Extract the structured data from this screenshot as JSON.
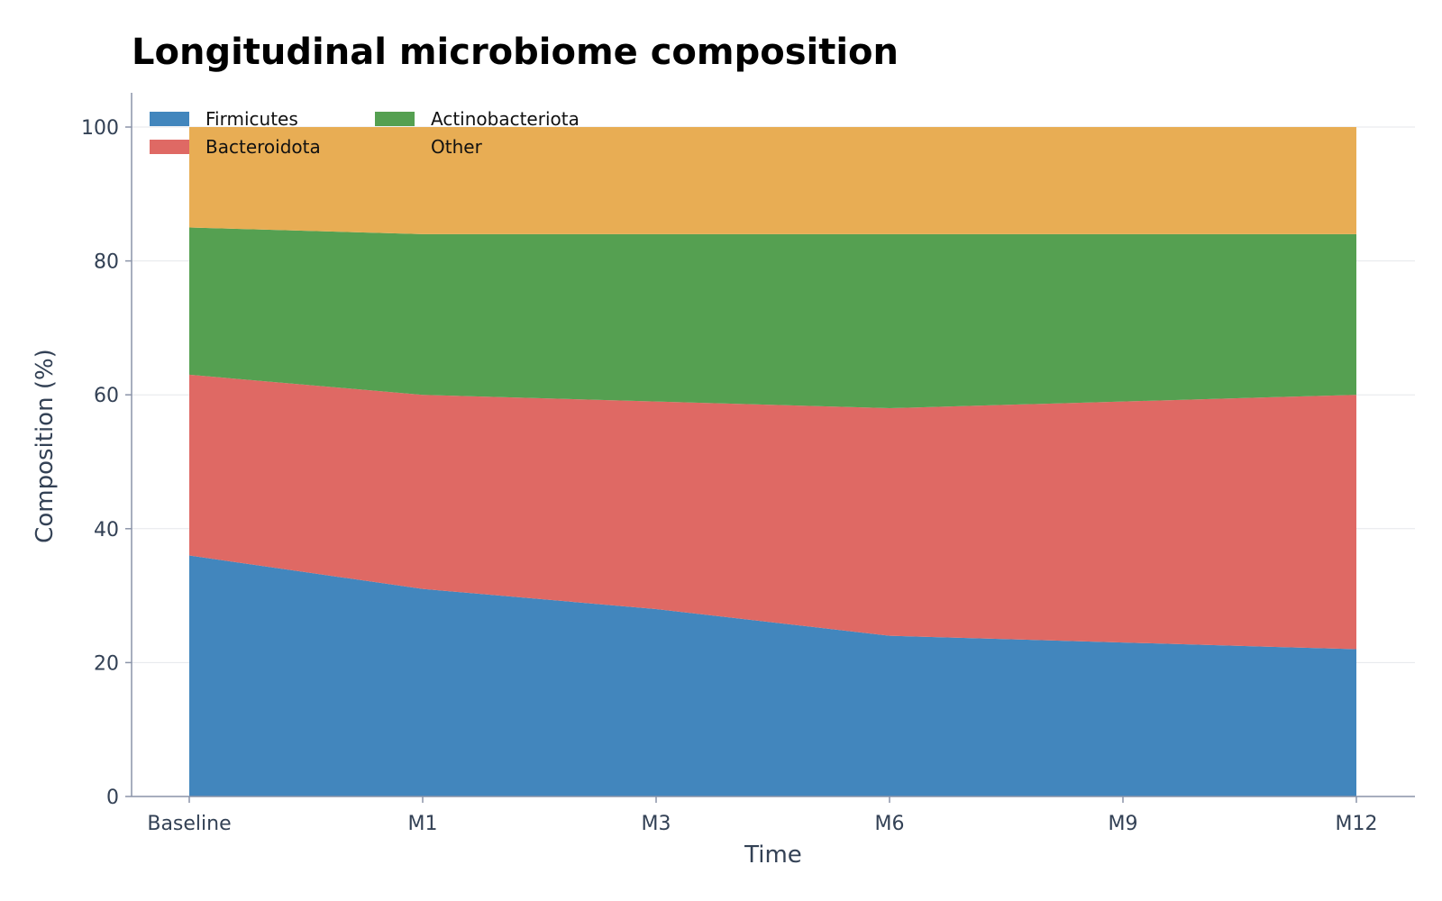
{
  "chart_data": {
    "type": "area",
    "stacked": true,
    "title": "Longitudinal microbiome composition",
    "xlabel": "Time",
    "ylabel": "Composition (%)",
    "categories": [
      "Baseline",
      "M1",
      "M3",
      "M6",
      "M9",
      "M12"
    ],
    "ylim": [
      0,
      100
    ],
    "yticks": [
      0,
      20,
      40,
      60,
      80,
      100
    ],
    "grid": "horizontal",
    "legend_position": "top-left",
    "legend_columns": 2,
    "series": [
      {
        "name": "Firmicutes",
        "color": "#4286bd",
        "values": [
          36,
          31,
          28,
          24,
          23,
          22
        ]
      },
      {
        "name": "Bacteroidota",
        "color": "#df6964",
        "values": [
          27,
          29,
          31,
          34,
          36,
          38
        ]
      },
      {
        "name": "Actinobacteriota",
        "color": "#55a051",
        "values": [
          22,
          24,
          25,
          26,
          25,
          24
        ]
      },
      {
        "name": "Other",
        "color": "#e8ad54",
        "values": [
          15,
          16,
          16,
          16,
          16,
          16
        ]
      }
    ]
  }
}
